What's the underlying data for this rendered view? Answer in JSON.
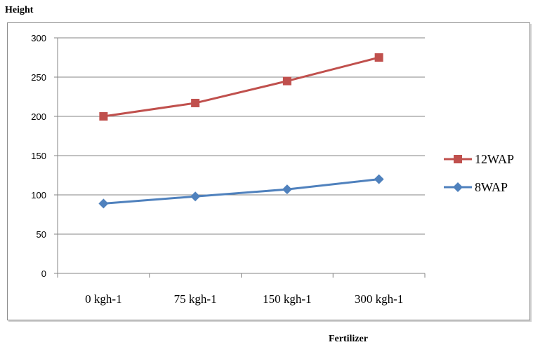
{
  "chart_data": {
    "type": "line",
    "categories": [
      "0 kgh-1",
      "75 kgh-1",
      "150 kgh-1",
      "300 kgh-1"
    ],
    "series": [
      {
        "name": "12WAP",
        "values": [
          200,
          217,
          245,
          275
        ],
        "color": "#c0504d",
        "marker": "square"
      },
      {
        "name": "8WAP",
        "values": [
          89,
          98,
          107,
          120
        ],
        "color": "#4f81bd",
        "marker": "diamond"
      }
    ],
    "title": "",
    "xlabel": "Fertilizer",
    "ylabel": "Height",
    "ylim": [
      0,
      300
    ],
    "yticks": [
      "0",
      "50",
      "100",
      "150",
      "200",
      "250",
      "300"
    ],
    "grid": true,
    "legend_position": "right"
  }
}
